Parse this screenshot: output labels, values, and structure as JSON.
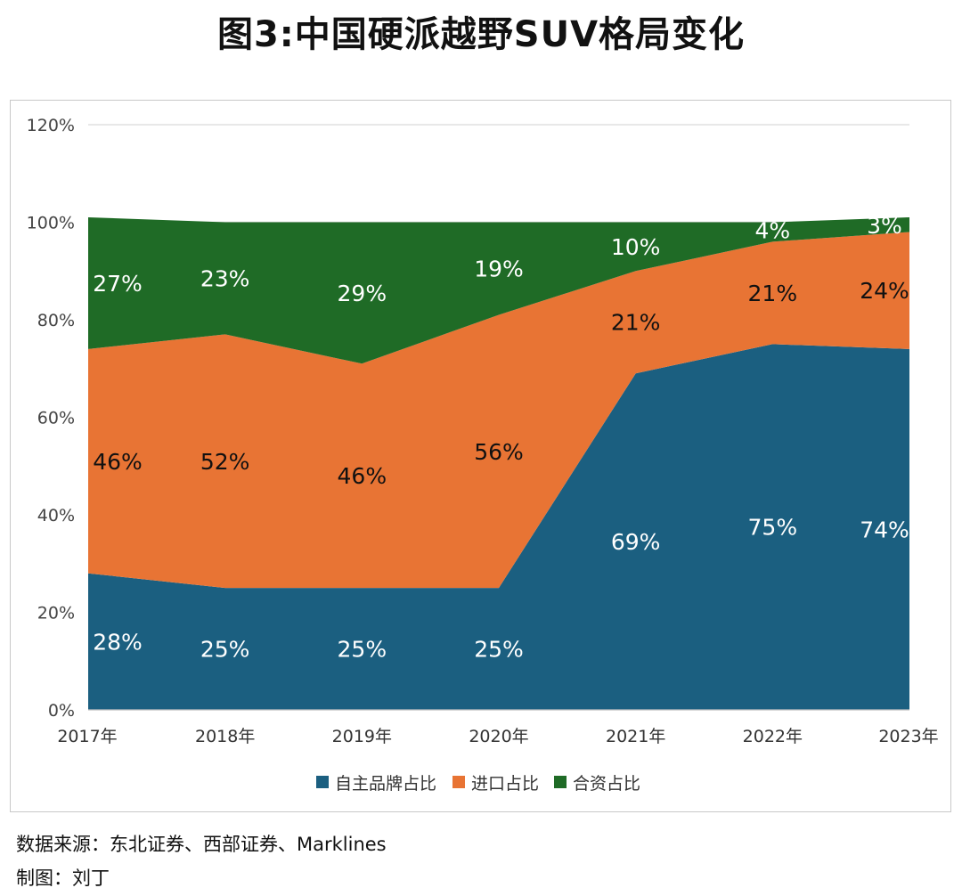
{
  "title": "图3:中国硬派越野SUV格局变化",
  "footer": {
    "source": "数据来源：东北证券、西部证券、Marklines",
    "author": "制图：刘丁"
  },
  "colors": {
    "own_brand": "#1b5f80",
    "imports": "#e87434",
    "joint_venture": "#1f6b26"
  },
  "chart_data": {
    "type": "area",
    "stacked": true,
    "categories": [
      "2017年",
      "2018年",
      "2019年",
      "2020年",
      "2021年",
      "2022年",
      "2023年"
    ],
    "series": [
      {
        "name": "自主品牌占比",
        "values": [
          28,
          25,
          25,
          25,
          69,
          75,
          74
        ],
        "labels": [
          "28%",
          "25%",
          "25%",
          "25%",
          "69%",
          "75%",
          "74%"
        ]
      },
      {
        "name": "进口占比",
        "values": [
          46,
          52,
          46,
          56,
          21,
          21,
          24
        ],
        "labels": [
          "46%",
          "52%",
          "46%",
          "56%",
          "21%",
          "21%",
          "24%"
        ]
      },
      {
        "name": "合资占比",
        "values": [
          27,
          23,
          29,
          19,
          10,
          4,
          3
        ],
        "labels": [
          "27%",
          "23%",
          "29%",
          "19%",
          "10%",
          "4%",
          "3%"
        ]
      }
    ],
    "yticks": [
      "0%",
      "20%",
      "40%",
      "60%",
      "80%",
      "100%",
      "120%"
    ],
    "ylim": [
      0,
      120
    ],
    "grid": true,
    "legend_position": "bottom"
  }
}
